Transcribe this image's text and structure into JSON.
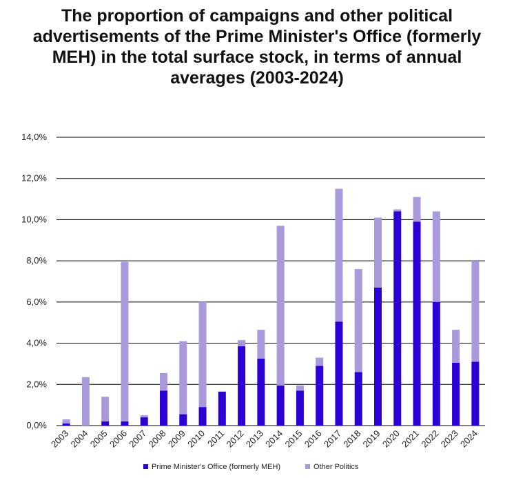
{
  "chart_data": {
    "type": "bar",
    "stacked": true,
    "title": "The proportion of campaigns and other political advertisements of the Prime Minister's Office (formerly MEH) in the total surface stock, in terms of annual averages (2003-2024)",
    "categories": [
      "2003",
      "2004",
      "2005",
      "2006",
      "2007",
      "2008",
      "2009",
      "2010",
      "2011",
      "2012",
      "2013",
      "2014",
      "2015",
      "2016",
      "2017",
      "2018",
      "2019",
      "2020",
      "2021",
      "2022",
      "2023",
      "2024"
    ],
    "series": [
      {
        "name": "Prime Minister's Office (formerly MEH)",
        "color": "#2a00d4",
        "values": [
          0.1,
          0.0,
          0.2,
          0.2,
          0.4,
          1.7,
          0.55,
          0.9,
          1.65,
          3.85,
          3.25,
          1.95,
          1.7,
          2.9,
          5.05,
          2.6,
          6.7,
          10.4,
          9.9,
          6.0,
          3.05,
          3.1
        ]
      },
      {
        "name": "Other Politics",
        "color": "#a99bdb",
        "values": [
          0.2,
          2.35,
          1.2,
          7.75,
          0.1,
          0.85,
          3.55,
          5.1,
          0.0,
          0.3,
          1.4,
          7.75,
          0.25,
          0.4,
          6.45,
          5.0,
          3.4,
          0.1,
          1.2,
          4.4,
          1.6,
          4.9
        ]
      }
    ],
    "ylim": [
      0,
      14
    ],
    "yticks": [
      "0,0%",
      "2,0%",
      "4,0%",
      "6,0%",
      "8,0%",
      "10,0%",
      "12,0%",
      "14,0%"
    ],
    "ytick_values": [
      0,
      2,
      4,
      6,
      8,
      10,
      12,
      14
    ],
    "xlabel": "",
    "ylabel": "",
    "grid": true,
    "legend_position": "bottom-center"
  }
}
